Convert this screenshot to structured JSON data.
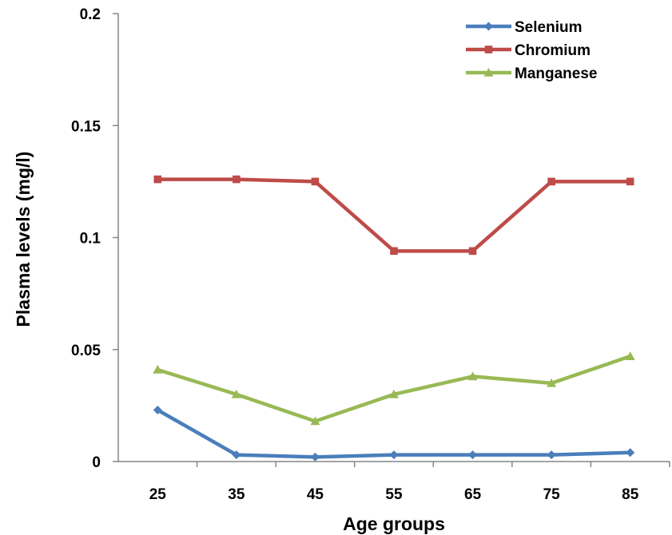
{
  "chart_data": {
    "type": "line",
    "xlabel": "Age groups",
    "ylabel": "Plasma levels (mg/l)",
    "categories": [
      "25",
      "35",
      "45",
      "55",
      "65",
      "75",
      "85"
    ],
    "ylim": [
      0,
      0.2
    ],
    "yticks": [
      "0",
      "0.05",
      "0.1",
      "0.15",
      "0.2"
    ],
    "grid": false,
    "legend_position": "top-right",
    "series": [
      {
        "name": "Selenium",
        "color": "#4A7EBB",
        "marker": "diamond",
        "values": [
          0.023,
          0.003,
          0.002,
          0.003,
          0.003,
          0.003,
          0.004
        ]
      },
      {
        "name": "Chromium",
        "color": "#BE4B48",
        "marker": "square",
        "values": [
          0.126,
          0.126,
          0.125,
          0.094,
          0.094,
          0.125,
          0.125
        ]
      },
      {
        "name": "Manganese",
        "color": "#98B954",
        "marker": "triangle",
        "values": [
          0.041,
          0.03,
          0.018,
          0.03,
          0.038,
          0.035,
          0.047
        ]
      }
    ]
  }
}
